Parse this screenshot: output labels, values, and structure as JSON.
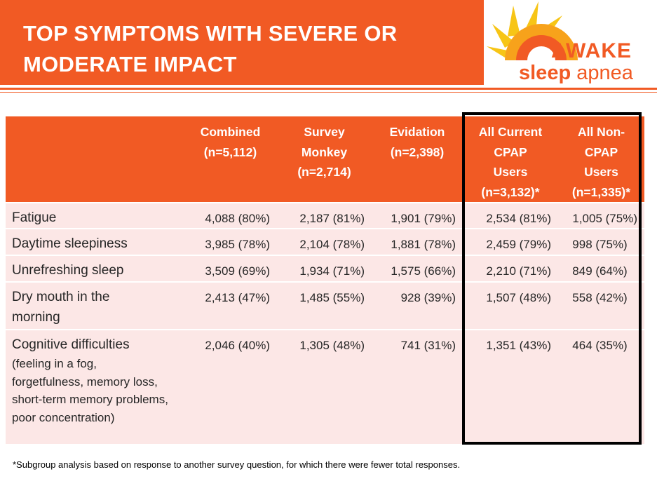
{
  "header": {
    "title_line1": "TOP SYMPTOMS WITH SEVERE OR",
    "title_line2": "MODERATE IMPACT"
  },
  "logo": {
    "word1": "AWAKE",
    "word2_bold": "sleep",
    "word2_light": "apnea",
    "colors": {
      "orange": "#f15a24",
      "yellow": "#f7c516"
    }
  },
  "table": {
    "columns": [
      {
        "lines": [
          "Combined",
          "(n=5,112)"
        ]
      },
      {
        "lines": [
          "Survey",
          "Monkey",
          "(n=2,714)"
        ]
      },
      {
        "lines": [
          "Evidation",
          "(n=2,398)"
        ]
      },
      {
        "lines": [
          "All Current",
          "CPAP",
          "Users",
          "(n=3,132)*"
        ]
      },
      {
        "lines": [
          "All Non-",
          "CPAP",
          "Users",
          "(n=1,335)*"
        ]
      }
    ],
    "rows": [
      {
        "label": "Fatigue",
        "note": "",
        "values": [
          "4,088 (80%)",
          "2,187 (81%)",
          "1,901 (79%)",
          "2,534 (81%)",
          "1,005 (75%)"
        ]
      },
      {
        "label": "Daytime sleepiness",
        "note": "",
        "values": [
          "3,985 (78%)",
          "2,104 (78%)",
          "1,881 (78%)",
          "2,459 (79%)",
          "998 (75%)"
        ]
      },
      {
        "label": "Unrefreshing sleep",
        "note": "",
        "values": [
          "3,509 (69%)",
          "1,934 (71%)",
          "1,575 (66%)",
          "2,210 (71%)",
          "849 (64%)"
        ]
      },
      {
        "label": "Dry mouth in the morning",
        "note": "",
        "values": [
          "2,413 (47%)",
          "1,485 (55%)",
          "928 (39%)",
          "1,507 (48%)",
          "558 (42%)"
        ]
      },
      {
        "label": "Cognitive difficulties",
        "note": "(feeling in a fog, forgetfulness, memory loss, short-term memory problems, poor concentration)",
        "values": [
          "2,046 (40%)",
          "1,305 (48%)",
          "741 (31%)",
          "1,351 (43%)",
          "464 (35%)"
        ]
      }
    ]
  },
  "footnote": "*Subgroup analysis based on response to another survey question, for which there were fewer total responses.",
  "colors": {
    "accent": "#f15a24",
    "row_bg": "#fce7e6",
    "highlight_border": "#000000"
  }
}
